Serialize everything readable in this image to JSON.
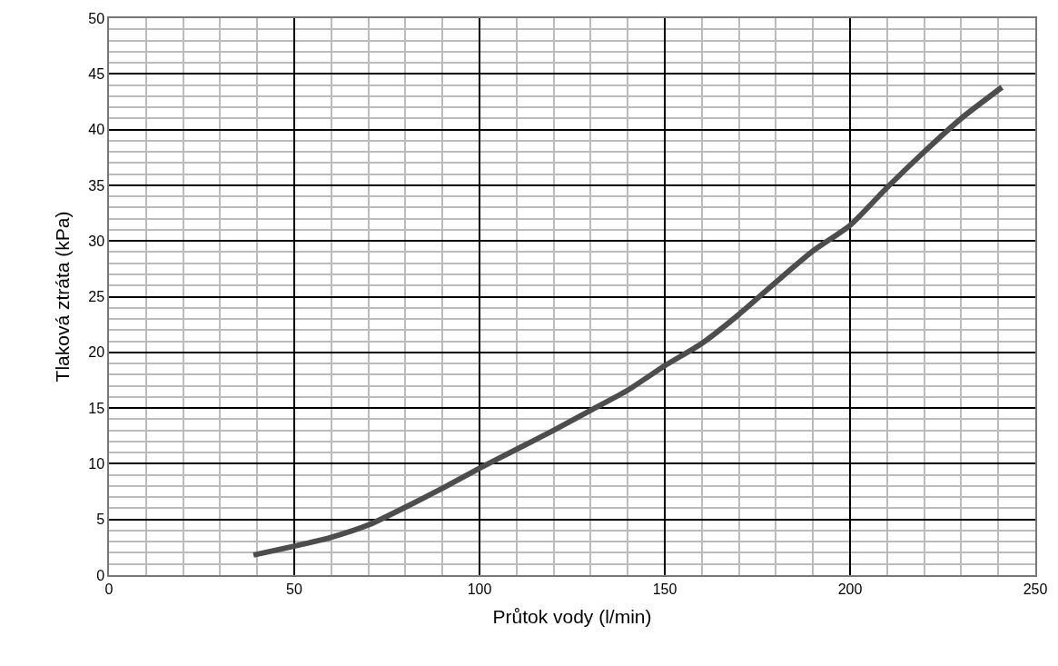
{
  "chart_data": {
    "type": "line",
    "xlabel": "Průtok vody (l/min)",
    "ylabel": "Tlaková ztráta (kPa)",
    "xlim": [
      0,
      250
    ],
    "xticks": [
      0,
      50,
      100,
      150,
      200,
      250
    ],
    "ylim": [
      0,
      50
    ],
    "yticks": [
      0,
      5,
      10,
      15,
      20,
      25,
      30,
      35,
      40,
      45,
      50
    ],
    "grid": true,
    "marker": "none",
    "line_style": "solid",
    "series": [
      {
        "color": "#4d4d4d",
        "x": [
          39,
          50,
          60,
          70,
          80,
          90,
          100,
          110,
          120,
          130,
          140,
          150,
          160,
          170,
          180,
          190,
          200,
          210,
          220,
          230,
          241
        ],
        "values": [
          1.8,
          2.6,
          3.4,
          4.5,
          6.1,
          7.8,
          9.6,
          11.3,
          13.0,
          14.8,
          16.6,
          18.8,
          20.8,
          23.4,
          26.3,
          29.1,
          31.4,
          34.8,
          38.0,
          41.0,
          43.8
        ]
      }
    ]
  }
}
